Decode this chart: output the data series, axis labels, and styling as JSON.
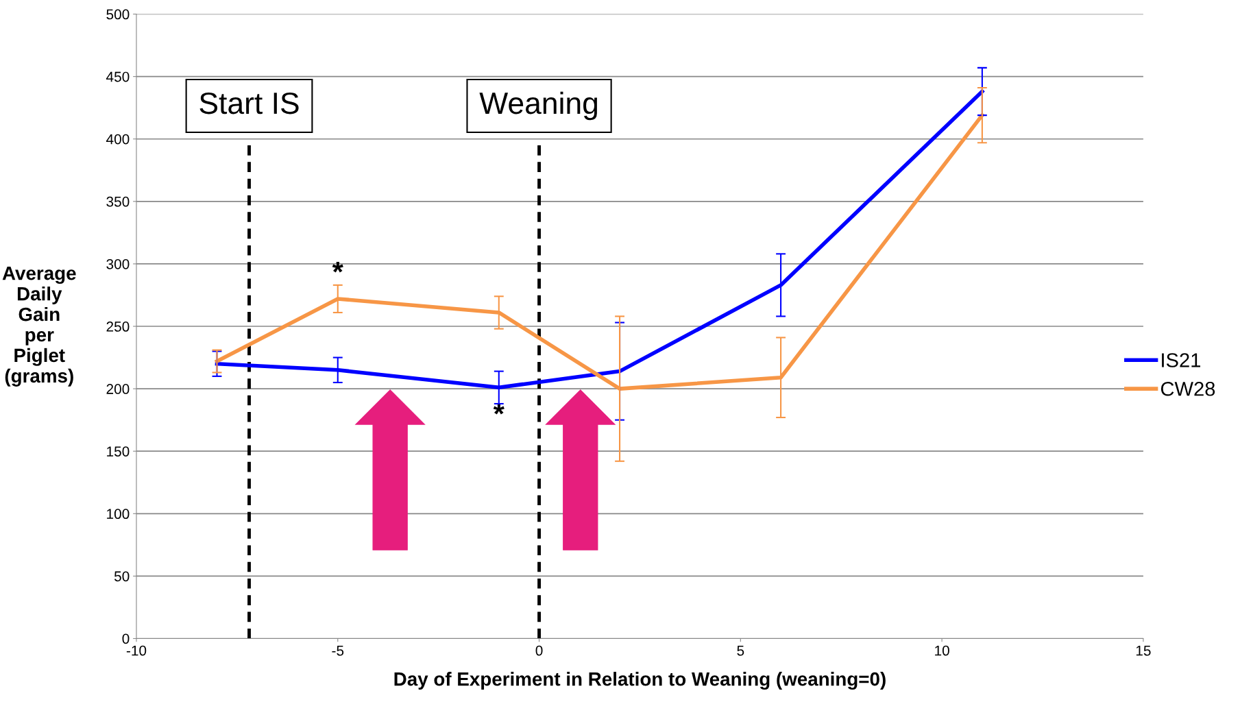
{
  "chart_data": {
    "type": "line",
    "xlabel": "Day of Experiment in Relation to Weaning (weaning=0)",
    "ylabel": "Average\nDaily\nGain\nper\nPiglet\n(grams)",
    "x": [
      -8,
      -5,
      -1,
      2,
      6,
      11
    ],
    "series": [
      {
        "name": "IS21",
        "color": "#0000ff",
        "values": [
          220,
          215,
          201,
          214,
          283,
          438
        ],
        "errors": [
          10,
          10,
          13,
          39,
          25,
          19
        ]
      },
      {
        "name": "CW28",
        "color": "#f79646",
        "values": [
          222,
          272,
          261,
          200,
          209,
          419
        ],
        "errors": [
          9,
          11,
          13,
          58,
          32,
          22
        ]
      }
    ],
    "xlim": [
      -10,
      15
    ],
    "xticks": [
      -10,
      -5,
      0,
      5,
      10,
      15
    ],
    "ylim": [
      0,
      500
    ],
    "yticks": [
      0,
      50,
      100,
      150,
      200,
      250,
      300,
      350,
      400,
      450,
      500
    ],
    "ref_lines": [
      {
        "axis": "x",
        "value": -7.2,
        "label": "Start IS",
        "color": "#000000",
        "line_style": "dashed"
      },
      {
        "axis": "x",
        "value": 0,
        "label": "Weaning",
        "color": "#000000",
        "line_style": "dashed"
      }
    ],
    "annotations": [
      {
        "text": "*",
        "x": -5,
        "y": 272
      },
      {
        "text": "*",
        "x": -1,
        "y": 201
      }
    ],
    "grid": "y",
    "legend": "right",
    "marker": "none",
    "line_style": "solid"
  }
}
